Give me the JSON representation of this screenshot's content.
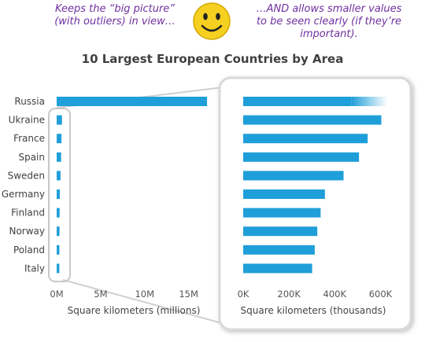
{
  "notes": {
    "left": "Keeps the “big picture” (with outliers) in view…",
    "right": "…AND allows smaller values to be seen clearly (if they’re important)."
  },
  "icon": "smiley-face-icon",
  "colors": {
    "bar": "#1f9fd9",
    "note": "#7030a0",
    "smiley": "#f5d020",
    "panel_border": "#d9d9d9"
  },
  "chart_data": {
    "type": "bar",
    "orientation": "horizontal",
    "title": "10 Largest European Countries by Area",
    "categories": [
      "Russia",
      "Ukraine",
      "France",
      "Spain",
      "Sweden",
      "Germany",
      "Finland",
      "Norway",
      "Poland",
      "Italy"
    ],
    "values": [
      17098246,
      603550,
      543940,
      505990,
      438574,
      357114,
      338455,
      323802,
      312696,
      301340
    ],
    "panels": [
      {
        "name": "overview",
        "xlabel": "Square kilometers (millions)",
        "xlim": [
          0,
          17000000
        ],
        "ticks": [
          0,
          5000000,
          10000000,
          15000000
        ],
        "tick_labels": [
          "0M",
          "5M",
          "10M",
          "15M"
        ]
      },
      {
        "name": "zoom",
        "xlabel": "Square kilometers (thousands)",
        "xlim": [
          0,
          650000
        ],
        "ticks": [
          0,
          200000,
          400000,
          600000
        ],
        "tick_labels": [
          "0K",
          "200K",
          "400K",
          "600K"
        ],
        "clipped": "Russia"
      }
    ],
    "grid": false,
    "legend": "none"
  }
}
